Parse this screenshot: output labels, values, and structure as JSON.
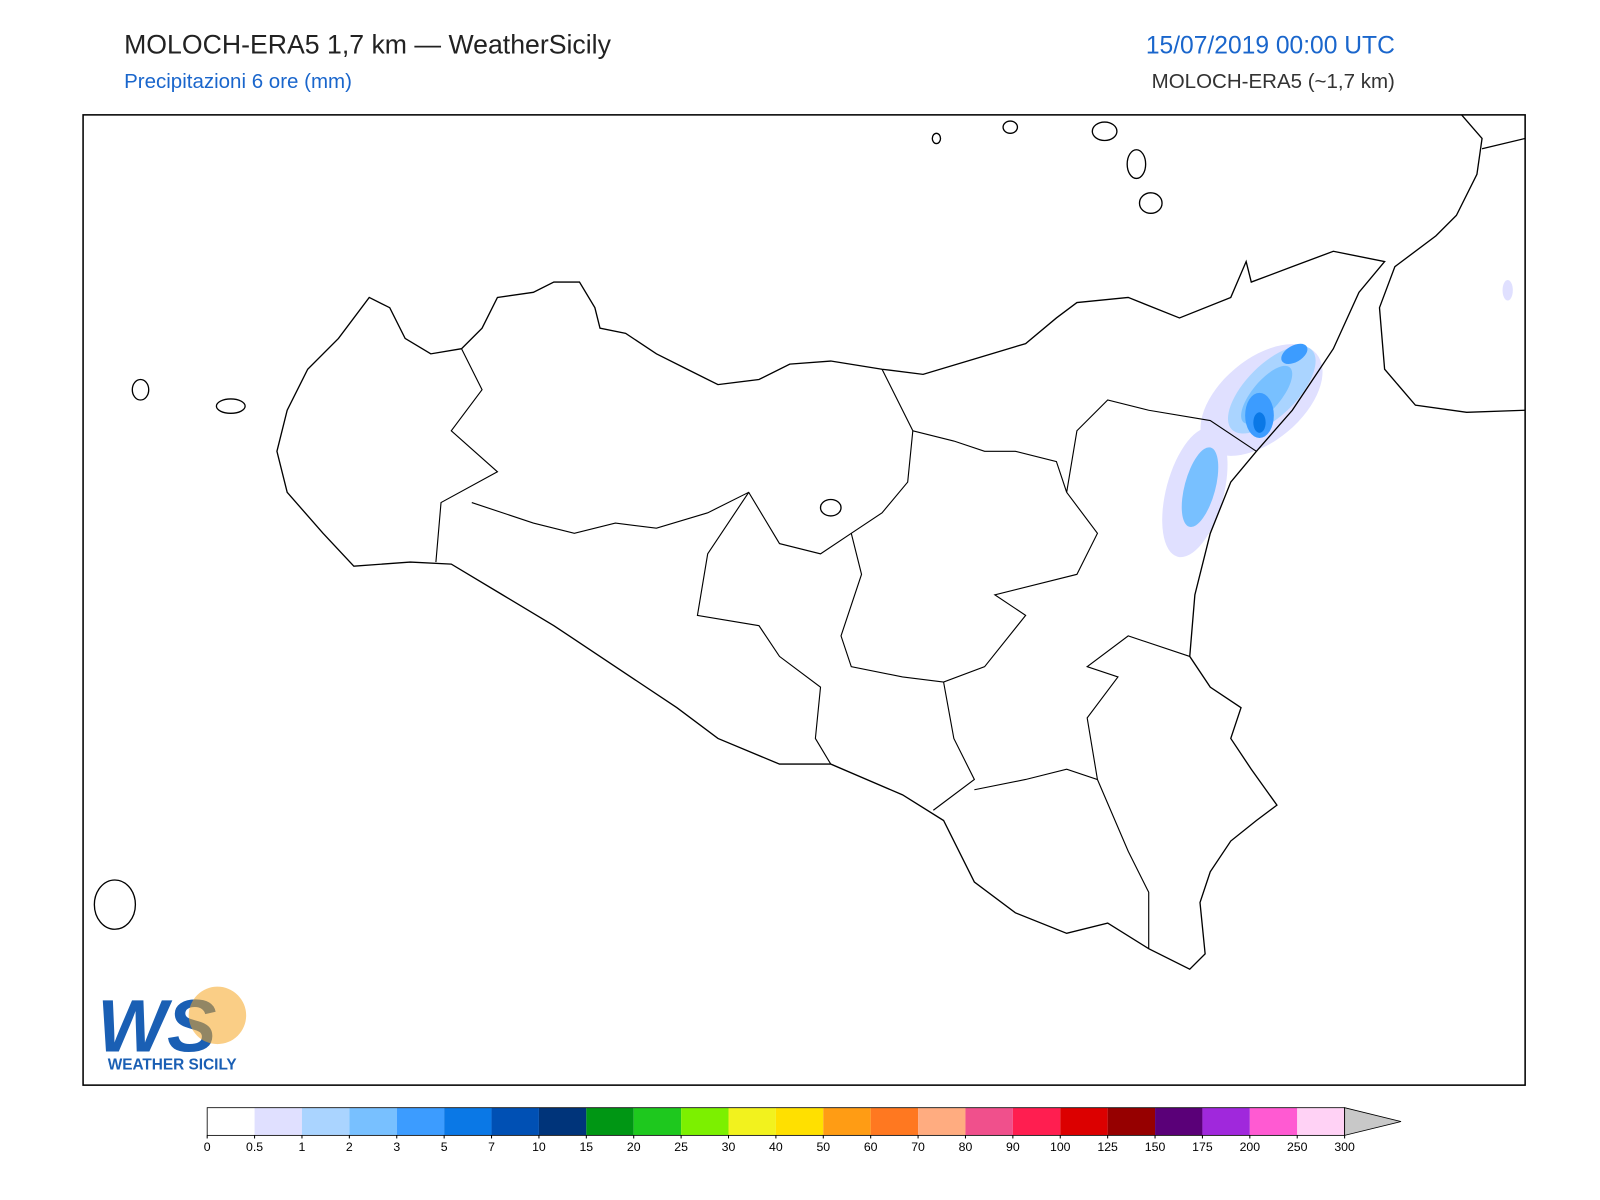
{
  "header": {
    "title": "MOLOCH-ERA5 1,7 km — WeatherSicily",
    "subtitle": "Precipitazioni 6 ore (mm)",
    "datetime": "15/07/2019 00:00 UTC",
    "model": "MOLOCH-ERA5 (~1,7 km)"
  },
  "logo": {
    "mark": "WS",
    "name": "WEATHER SICILY"
  },
  "colorbar": {
    "ticks": [
      0,
      0.5,
      1,
      2,
      3,
      5,
      7,
      10,
      15,
      20,
      25,
      30,
      40,
      50,
      60,
      70,
      80,
      90,
      100,
      125,
      150,
      175,
      200,
      250,
      300
    ],
    "colors": [
      "#ffffff",
      "#e0e0ff",
      "#aad4ff",
      "#78c0ff",
      "#3c9cff",
      "#0a78e6",
      "#0050b4",
      "#00347a",
      "#009614",
      "#1ec81e",
      "#7cf000",
      "#f2f21e",
      "#ffe000",
      "#ff9c14",
      "#ff7820",
      "#ffac80",
      "#f0508c",
      "#ff1e50",
      "#dc0000",
      "#960000",
      "#5a0078",
      "#a028dc",
      "#ff5ad2",
      "#ffd2f5"
    ],
    "extend_color": "#c8c8c8"
  }
}
